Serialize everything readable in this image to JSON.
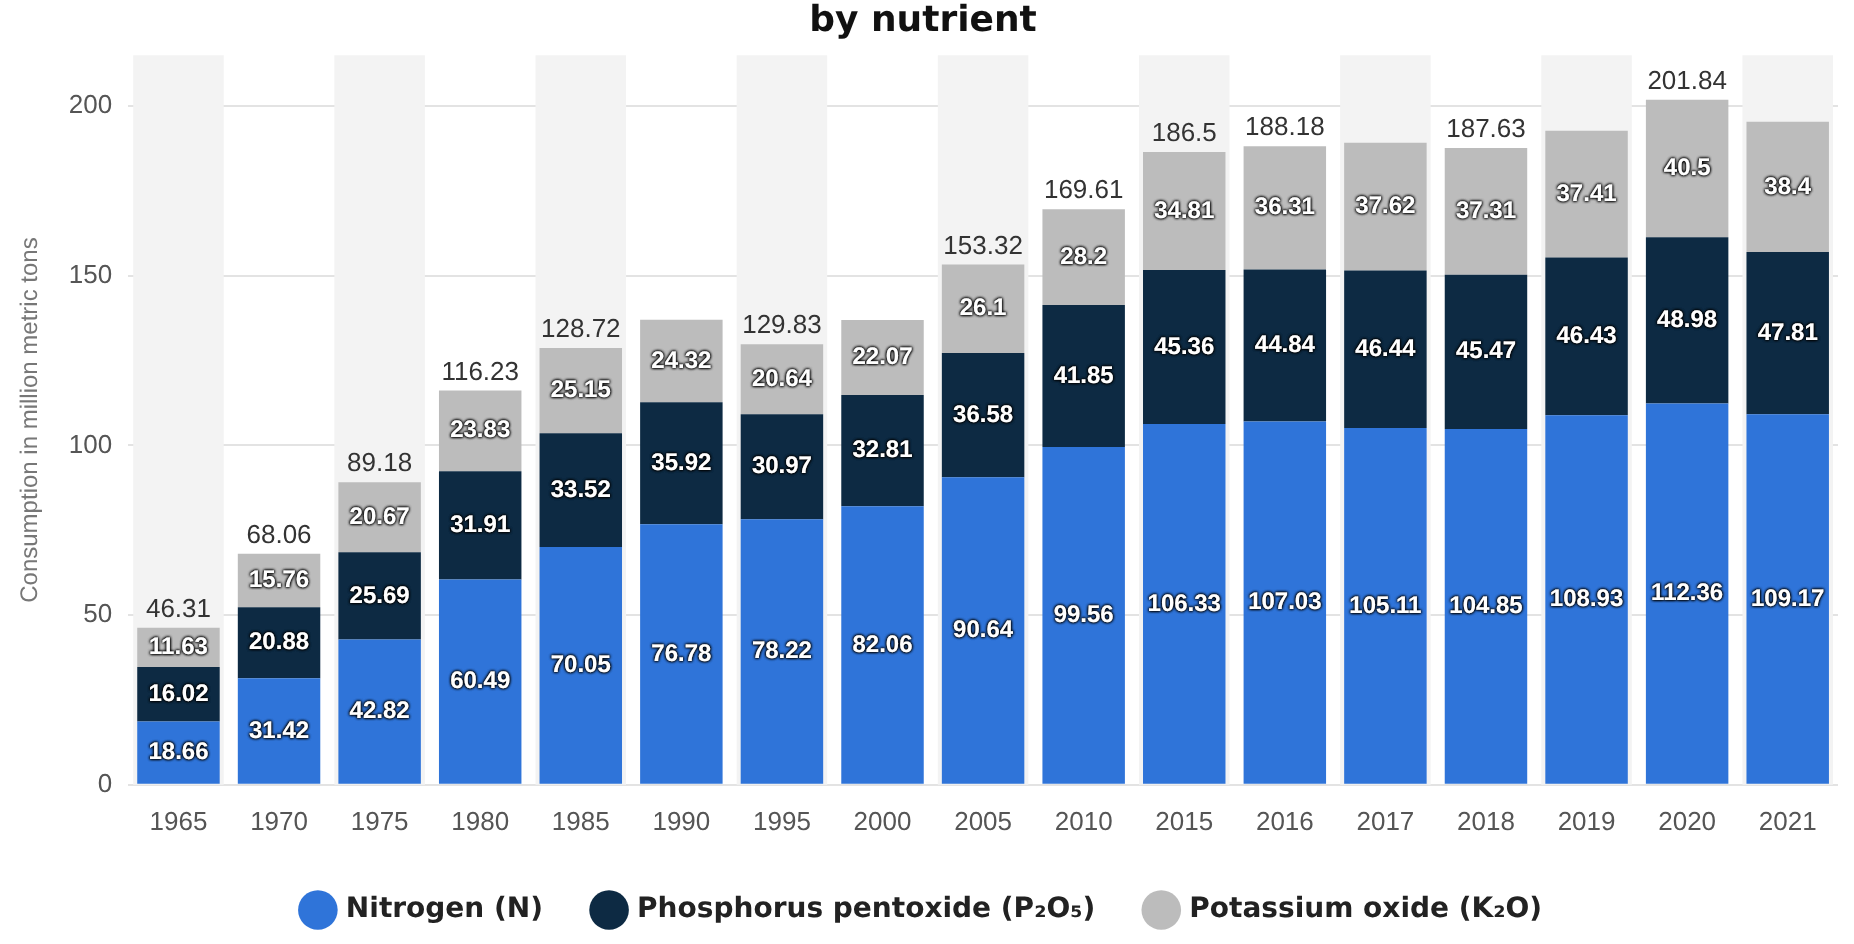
{
  "chart_data": {
    "type": "bar",
    "title": "by nutrient",
    "ylabel": "Consumption in million metric tons",
    "categories": [
      "1965",
      "1970",
      "1975",
      "1980",
      "1985",
      "1990",
      "1995",
      "2000",
      "2005",
      "2010",
      "2015",
      "2016",
      "2017",
      "2018",
      "2019",
      "2020",
      "2021"
    ],
    "series": [
      {
        "name": "Nitrogen (N)",
        "color": "#2f74d9",
        "values": [
          18.66,
          31.42,
          42.82,
          60.49,
          70.05,
          76.78,
          78.22,
          82.06,
          90.64,
          99.56,
          106.33,
          107.03,
          105.11,
          104.85,
          108.93,
          112.36,
          109.17
        ]
      },
      {
        "name": "Phosphorus pentoxide (P₂O₅)",
        "color": "#0d2a43",
        "values": [
          16.02,
          20.88,
          25.69,
          31.91,
          33.52,
          35.92,
          30.97,
          32.81,
          36.58,
          41.85,
          45.36,
          44.84,
          46.44,
          45.47,
          46.43,
          48.98,
          47.81
        ]
      },
      {
        "name": "Potassium oxide (K₂O)",
        "color": "#bcbcbc",
        "values": [
          11.63,
          15.76,
          20.67,
          23.83,
          25.15,
          24.32,
          20.64,
          22.07,
          26.1,
          28.2,
          34.81,
          36.31,
          37.62,
          37.31,
          37.41,
          40.5,
          38.4
        ]
      }
    ],
    "stacked": true,
    "data_labels": true,
    "totals": [
      "46.31",
      "68.06",
      "89.18",
      "116.23",
      "128.72",
      null,
      "129.83",
      null,
      "153.32",
      "169.61",
      "186.5",
      "188.18",
      null,
      "187.63",
      null,
      "201.84",
      null
    ],
    "ylim": [
      0,
      215
    ],
    "yticks": [
      0,
      50,
      100,
      150,
      200
    ],
    "grid": "y",
    "legend": "bottom"
  }
}
